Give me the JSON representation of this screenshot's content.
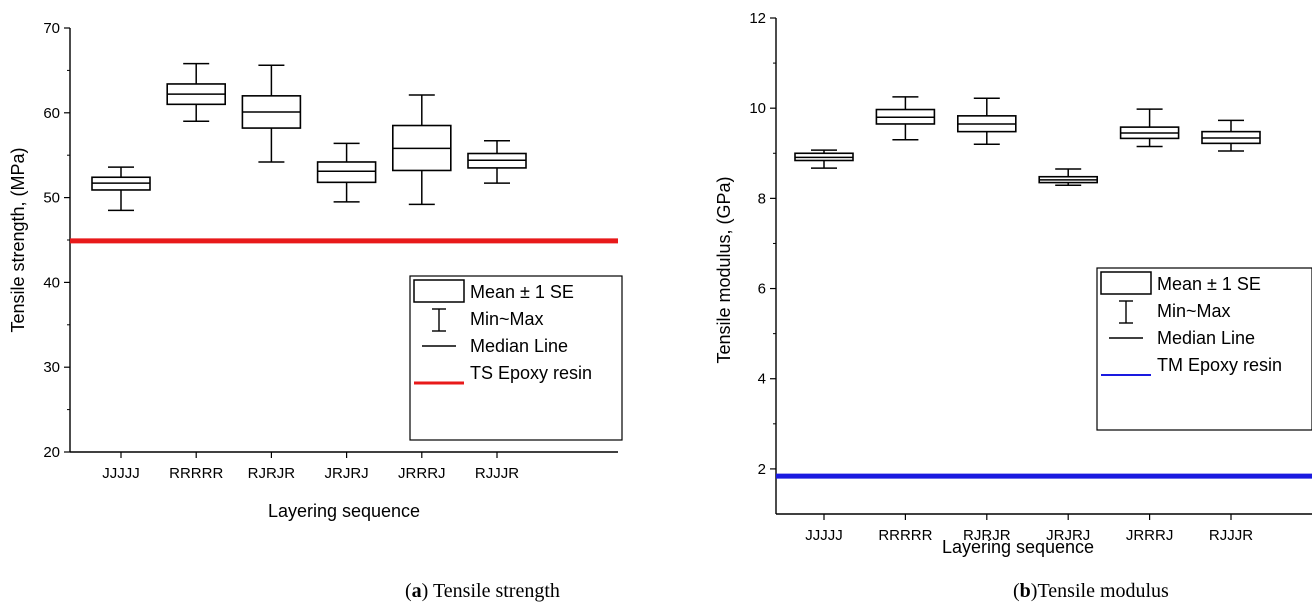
{
  "legend": {
    "box": "Mean ± 1 SE",
    "whisker": "Min~Max",
    "median": "Median Line"
  },
  "colors": {
    "ts_line": "#e8191a",
    "tm_line": "#1a1ae0"
  },
  "captions": {
    "a_letter": "a",
    "a_text": " Tensile strength",
    "b_letter": "b",
    "b_text": "Tensile modulus"
  },
  "chart_data": [
    {
      "type": "box",
      "xlabel": "Layering sequence",
      "ylabel": "Tensile strength, (MPa)",
      "ylim": [
        20,
        70
      ],
      "yticks": [
        20,
        30,
        40,
        50,
        60,
        70
      ],
      "categories": [
        "JJJJJ",
        "RRRRR",
        "RJRJR",
        "JRJRJ",
        "JRRRJ",
        "RJJJR"
      ],
      "boxes": [
        {
          "min": 48.5,
          "box_low": 50.9,
          "median": 51.7,
          "box_high": 52.4,
          "max": 53.6
        },
        {
          "min": 59.0,
          "box_low": 61.0,
          "median": 62.2,
          "box_high": 63.4,
          "max": 65.8
        },
        {
          "min": 54.2,
          "box_low": 58.2,
          "median": 60.1,
          "box_high": 62.0,
          "max": 65.6
        },
        {
          "min": 49.5,
          "box_low": 51.8,
          "median": 53.1,
          "box_high": 54.2,
          "max": 56.4
        },
        {
          "min": 49.2,
          "box_low": 53.2,
          "median": 55.8,
          "box_high": 58.5,
          "max": 62.1
        },
        {
          "min": 51.7,
          "box_low": 53.5,
          "median": 54.4,
          "box_high": 55.2,
          "max": 56.7
        }
      ],
      "reference_line": {
        "name": "TS Epoxy resin",
        "value": 44.9,
        "color": "#e8191a"
      },
      "legend_position": "right"
    },
    {
      "type": "box",
      "xlabel": "Layering sequence",
      "ylabel": "Tensile modulus, (GPa)",
      "ylim": [
        1,
        12
      ],
      "yticks": [
        2,
        4,
        6,
        8,
        10,
        12
      ],
      "categories": [
        "JJJJJ",
        "RRRRR",
        "RJRJR",
        "JRJRJ",
        "JRRRJ",
        "RJJJR"
      ],
      "boxes": [
        {
          "min": 8.67,
          "box_low": 8.84,
          "median": 8.91,
          "box_high": 9.0,
          "max": 9.07
        },
        {
          "min": 9.3,
          "box_low": 9.65,
          "median": 9.8,
          "box_high": 9.97,
          "max": 10.25
        },
        {
          "min": 9.2,
          "box_low": 9.48,
          "median": 9.65,
          "box_high": 9.83,
          "max": 10.22
        },
        {
          "min": 8.29,
          "box_low": 8.35,
          "median": 8.41,
          "box_high": 8.48,
          "max": 8.65
        },
        {
          "min": 9.15,
          "box_low": 9.33,
          "median": 9.45,
          "box_high": 9.58,
          "max": 9.98
        },
        {
          "min": 9.05,
          "box_low": 9.22,
          "median": 9.34,
          "box_high": 9.48,
          "max": 9.73
        }
      ],
      "reference_line": {
        "name": "TM Epoxy resin",
        "value": 1.84,
        "color": "#1a1ae0"
      },
      "legend_position": "right"
    }
  ]
}
